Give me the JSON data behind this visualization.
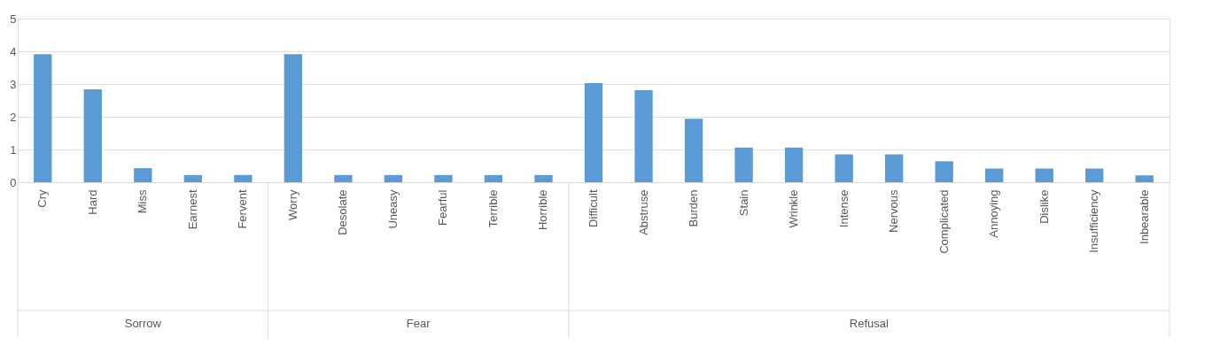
{
  "chart_data": {
    "type": "bar",
    "categories": [
      "Cry",
      "Hard",
      "Miss",
      "Earnest",
      "Fervent",
      "Worry",
      "Desolate",
      "Uneasy",
      "Fearful",
      "Terrible",
      "Horrible",
      "Difficult",
      "Abstruse",
      "Burden",
      "Stain",
      "Wrinkle",
      "Intense",
      "Nervous",
      "Complicated",
      "Annoying",
      "Dislike",
      "Insufficiency",
      "Inbearable"
    ],
    "values": [
      3.91,
      2.84,
      0.43,
      0.22,
      0.22,
      3.91,
      0.22,
      0.22,
      0.22,
      0.22,
      0.22,
      3.03,
      2.81,
      1.94,
      1.06,
      1.06,
      0.85,
      0.85,
      0.64,
      0.42,
      0.42,
      0.42,
      0.21
    ],
    "color": "#5b9bd5",
    "ylim": [
      0,
      5
    ],
    "yticks": [
      0,
      1,
      2,
      3,
      4,
      5
    ],
    "grid": "y",
    "annotations": [
      "Sorrow",
      "Fear",
      "Refusal"
    ]
  }
}
